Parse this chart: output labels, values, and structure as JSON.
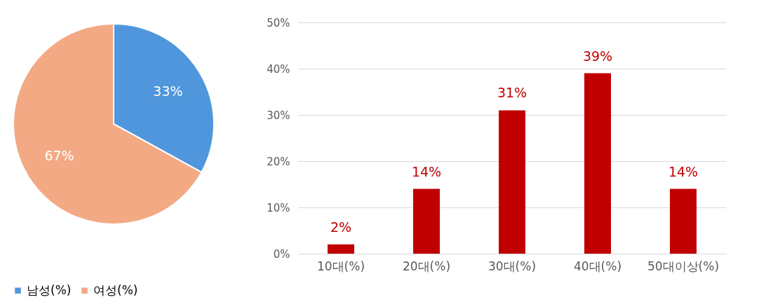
{
  "chart_data": [
    {
      "type": "pie",
      "categories": [
        "남성(%)",
        "여성(%)"
      ],
      "values": [
        33,
        67
      ],
      "colors": [
        "#4f96dc",
        "#f2a984"
      ],
      "value_labels": [
        "33%",
        "67%"
      ],
      "legend": "bottom"
    },
    {
      "type": "bar",
      "categories": [
        "10대(%)",
        "20대(%)",
        "30대(%)",
        "40대(%)",
        "50대이상(%)"
      ],
      "series": [
        {
          "color": "#c00000",
          "values": [
            2,
            14,
            31,
            39,
            14
          ],
          "value_labels": [
            "2%",
            "14%",
            "31%",
            "39%",
            "14%"
          ]
        }
      ],
      "ylim": [
        0,
        50
      ],
      "yticks": [
        {
          "value": 0,
          "label": "0%"
        },
        {
          "value": 10,
          "label": "10%"
        },
        {
          "value": 20,
          "label": "20%"
        },
        {
          "value": 30,
          "label": "30%"
        },
        {
          "value": 40,
          "label": "40%"
        },
        {
          "value": 50,
          "label": "50%"
        }
      ],
      "grid": "y"
    }
  ]
}
